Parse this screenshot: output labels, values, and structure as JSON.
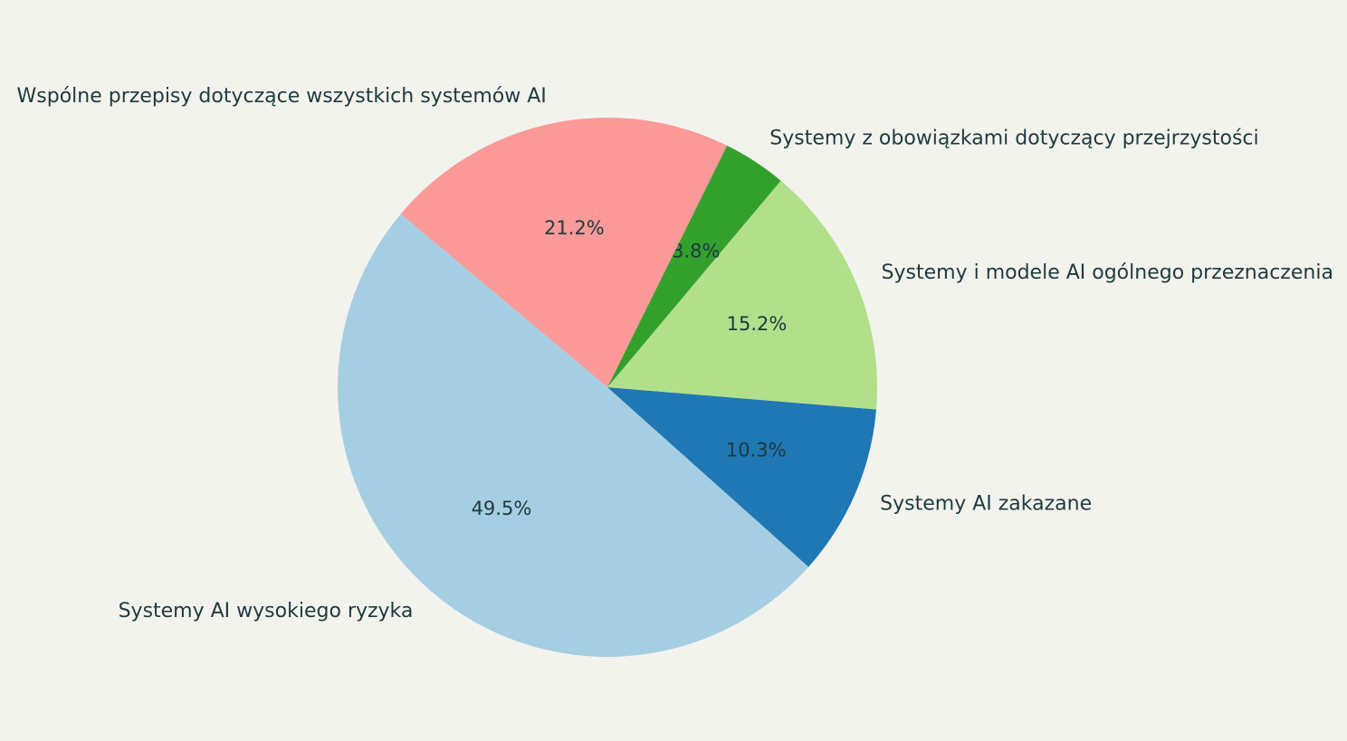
{
  "chart_data": {
    "type": "pie",
    "categories": [
      "Systemy AI wysokiego ryzyka",
      "Systemy AI zakazane",
      "Systemy i modele AI ogólnego przeznaczenia",
      "Systemy z obowiązkami dotyczący przejrzystości",
      "Wspólne przepisy dotyczące wszystkich systemów AI"
    ],
    "values": [
      49.5,
      10.3,
      15.2,
      3.8,
      21.2
    ],
    "value_labels": [
      "49.5%",
      "10.3%",
      "15.2%",
      "3.8%",
      "21.2%"
    ],
    "colors": [
      "#a6cee3",
      "#1f78b4",
      "#b2df8a",
      "#33a02c",
      "#fb9a99"
    ]
  }
}
